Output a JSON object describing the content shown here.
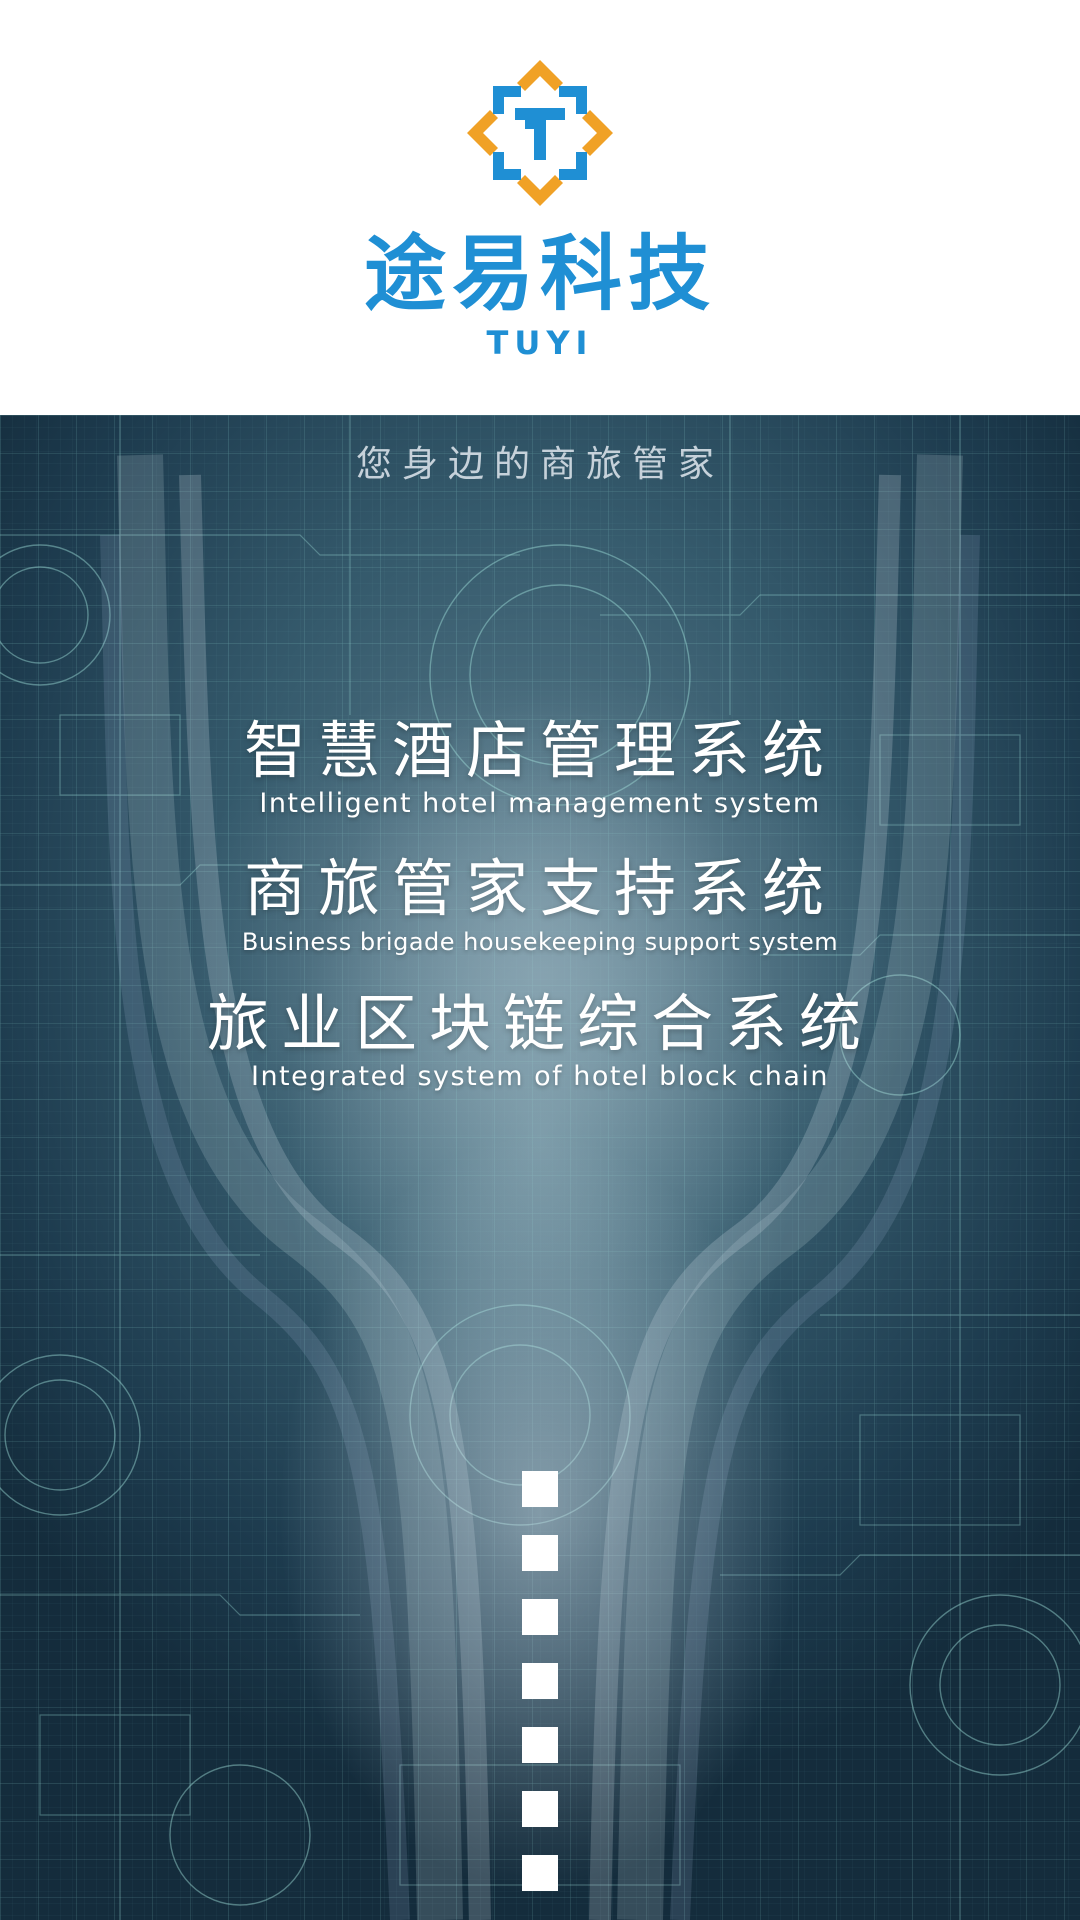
{
  "header": {
    "logo_icon": "tuyi-cross-logo-icon",
    "brand_cn": "途易科技",
    "brand_en": "TUYI",
    "colors": {
      "brand_blue": "#1f8fd4",
      "brand_orange": "#f0a126"
    }
  },
  "panel": {
    "tagline": "您身边的商旅管家",
    "systems": [
      {
        "cn": "智慧酒店管理系统",
        "en": "Intelligent hotel management system"
      },
      {
        "cn": "商旅管家支持系统",
        "en": "Business brigade housekeeping support system"
      },
      {
        "cn": "旅业区块链综合系统",
        "en": "Integrated system of hotel block chain"
      }
    ],
    "decoration": {
      "square_count": 7,
      "colors": {
        "background_dark": "#1d3b4e",
        "background_mid": "#4d6f80",
        "line": "#8fd6d0"
      }
    }
  }
}
